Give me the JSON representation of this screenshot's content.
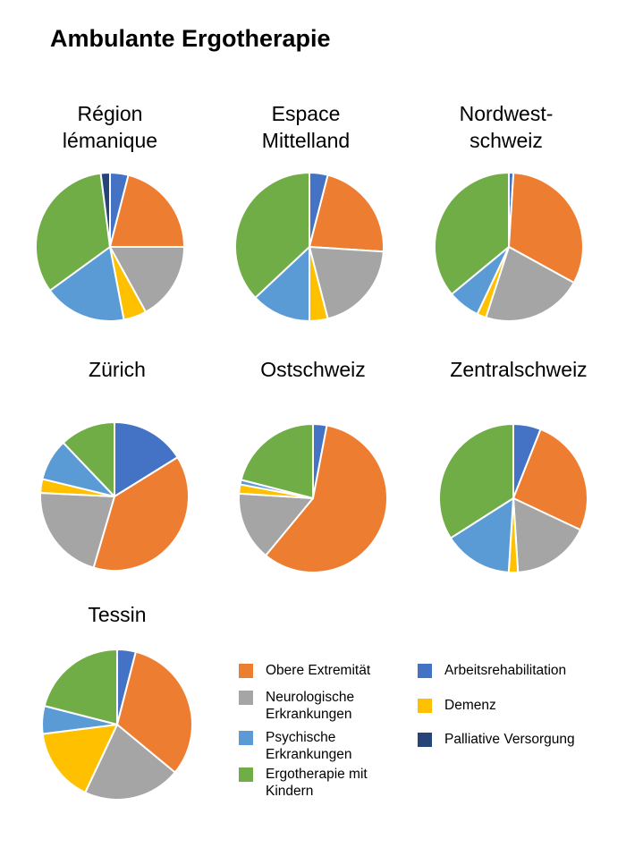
{
  "title": "Ambulante Ergotherapie",
  "legend": [
    {
      "key": "obere",
      "label": "Obere Extremität",
      "color": "#ED7D31"
    },
    {
      "key": "neuro",
      "label": "Neurologische\nErkrankungen",
      "color": "#A5A5A5"
    },
    {
      "key": "psych",
      "label": "Psychische\nErkrankungen",
      "color": "#5B9BD5"
    },
    {
      "key": "kinder",
      "label": "Ergotherapie mit\nKindern",
      "color": "#70AD47"
    },
    {
      "key": "arbeit",
      "label": "Arbeitsrehabilitation",
      "color": "#4472C4"
    },
    {
      "key": "demenz",
      "label": "Demenz",
      "color": "#FFC000"
    },
    {
      "key": "palliativ",
      "label": "Palliative Versorgung",
      "color": "#264478"
    }
  ],
  "chart_data": [
    {
      "type": "pie",
      "title": "Région\nlémanique",
      "categories": [
        "Arbeitsrehabilitation",
        "Obere Extremität",
        "Neurologische Erkrankungen",
        "Demenz",
        "Psychische Erkrankungen",
        "Ergotherapie mit Kindern",
        "Palliative Versorgung"
      ],
      "values": [
        4,
        21,
        17,
        5,
        18,
        33,
        2
      ]
    },
    {
      "type": "pie",
      "title": "Espace\nMittelland",
      "categories": [
        "Arbeitsrehabilitation",
        "Obere Extremität",
        "Neurologische Erkrankungen",
        "Demenz",
        "Psychische Erkrankungen",
        "Ergotherapie mit Kindern",
        "Palliative Versorgung"
      ],
      "values": [
        4,
        22,
        20,
        4,
        13,
        37,
        0
      ]
    },
    {
      "type": "pie",
      "title": "Nordwest-\nschweiz",
      "categories": [
        "Arbeitsrehabilitation",
        "Obere Extremität",
        "Neurologische Erkrankungen",
        "Demenz",
        "Psychische Erkrankungen",
        "Ergotherapie mit Kindern",
        "Palliative Versorgung"
      ],
      "values": [
        1,
        32,
        22,
        2,
        7,
        36,
        0
      ]
    },
    {
      "type": "pie",
      "title": "Zürich",
      "categories": [
        "Arbeitsrehabilitation",
        "Obere Extremität",
        "Neurologische Erkrankungen",
        "Demenz",
        "Psychische Erkrankungen",
        "Ergotherapie mit Kindern",
        "Palliative Versorgung"
      ],
      "values": [
        16,
        38,
        21,
        3,
        9,
        12,
        0
      ]
    },
    {
      "type": "pie",
      "title": "Ostschweiz",
      "categories": [
        "Arbeitsrehabilitation",
        "Obere Extremität",
        "Neurologische Erkrankungen",
        "Demenz",
        "Psychische Erkrankungen",
        "Ergotherapie mit Kindern",
        "Palliative Versorgung"
      ],
      "values": [
        3,
        58,
        15,
        2,
        1,
        21,
        0
      ]
    },
    {
      "type": "pie",
      "title": "Zentralschweiz",
      "categories": [
        "Arbeitsrehabilitation",
        "Obere Extremität",
        "Neurologische Erkrankungen",
        "Demenz",
        "Psychische Erkrankungen",
        "Ergotherapie mit Kindern",
        "Palliative Versorgung"
      ],
      "values": [
        6,
        26,
        17,
        2,
        15,
        34,
        0
      ]
    },
    {
      "type": "pie",
      "title": "Tessin",
      "categories": [
        "Arbeitsrehabilitation",
        "Obere Extremität",
        "Neurologische Erkrankungen",
        "Demenz",
        "Psychische Erkrankungen",
        "Ergotherapie mit Kindern",
        "Palliative Versorgung"
      ],
      "values": [
        4,
        32,
        21,
        16,
        6,
        21,
        0
      ]
    }
  ]
}
